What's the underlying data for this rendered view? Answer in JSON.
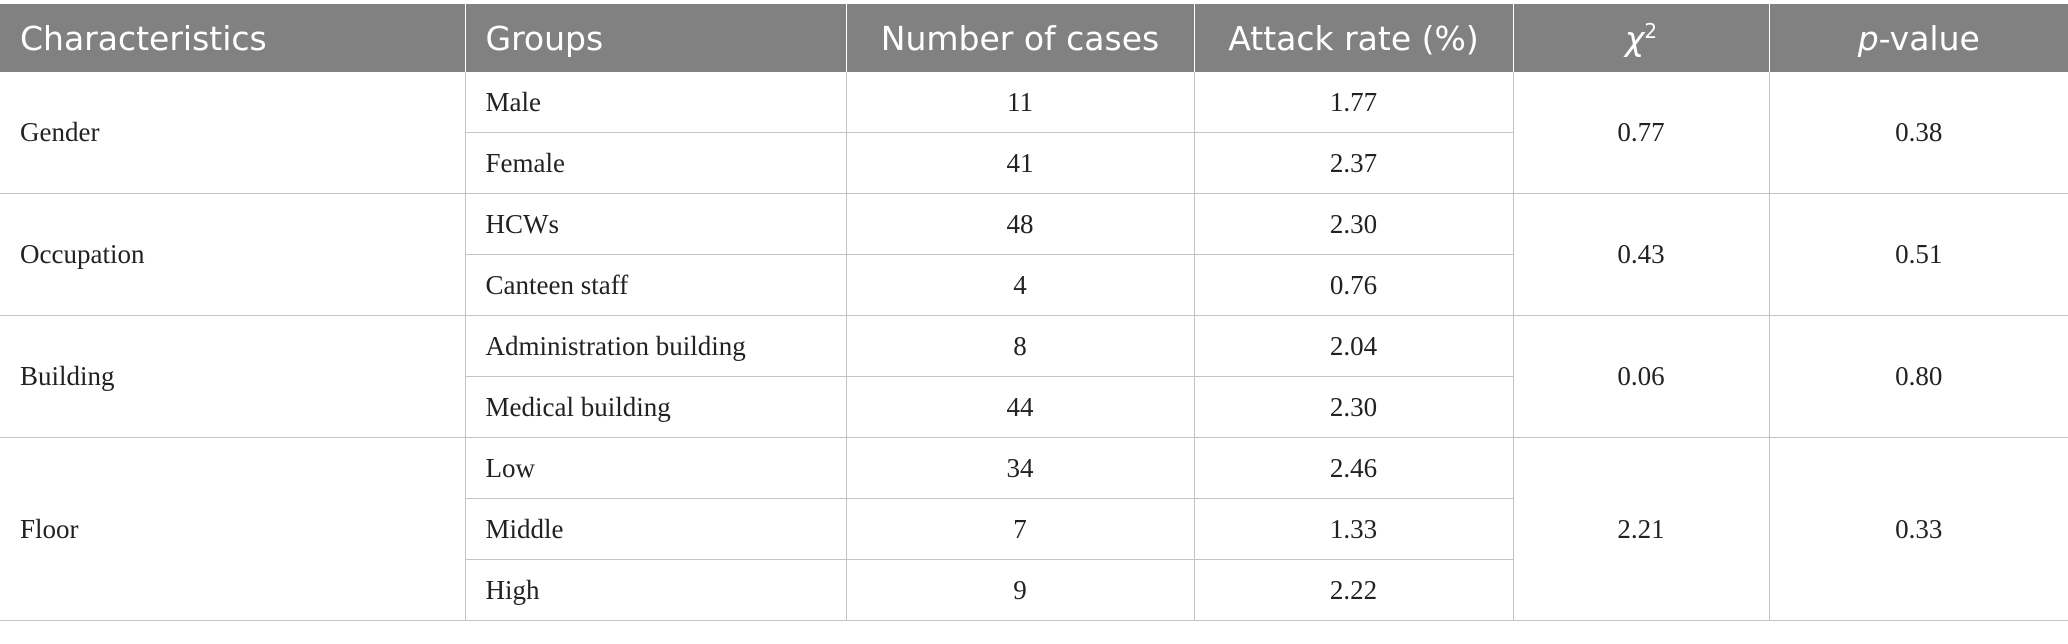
{
  "table": {
    "headers": [
      "Characteristics",
      "Groups",
      "Number of cases",
      "Attack rate (%)",
      "χ",
      "2",
      "p",
      "-value"
    ],
    "characteristics": [
      {
        "name": "Gender",
        "chi2": "0.77",
        "p": "0.38",
        "groups": [
          {
            "group": "Male",
            "cases": "11",
            "rate": "1.77"
          },
          {
            "group": "Female",
            "cases": "41",
            "rate": "2.37"
          }
        ]
      },
      {
        "name": "Occupation",
        "chi2": "0.43",
        "p": "0.51",
        "groups": [
          {
            "group": "HCWs",
            "cases": "48",
            "rate": "2.30"
          },
          {
            "group": "Canteen staff",
            "cases": "4",
            "rate": "0.76"
          }
        ]
      },
      {
        "name": "Building",
        "chi2": "0.06",
        "p": "0.80",
        "groups": [
          {
            "group": "Administration building",
            "cases": "8",
            "rate": "2.04"
          },
          {
            "group": "Medical building",
            "cases": "44",
            "rate": "2.30"
          }
        ]
      },
      {
        "name": "Floor",
        "chi2": "2.21",
        "p": "0.33",
        "groups": [
          {
            "group": "Low",
            "cases": "34",
            "rate": "2.46"
          },
          {
            "group": "Middle",
            "cases": "7",
            "rate": "1.33"
          },
          {
            "group": "High",
            "cases": "9",
            "rate": "2.22"
          }
        ]
      }
    ]
  }
}
